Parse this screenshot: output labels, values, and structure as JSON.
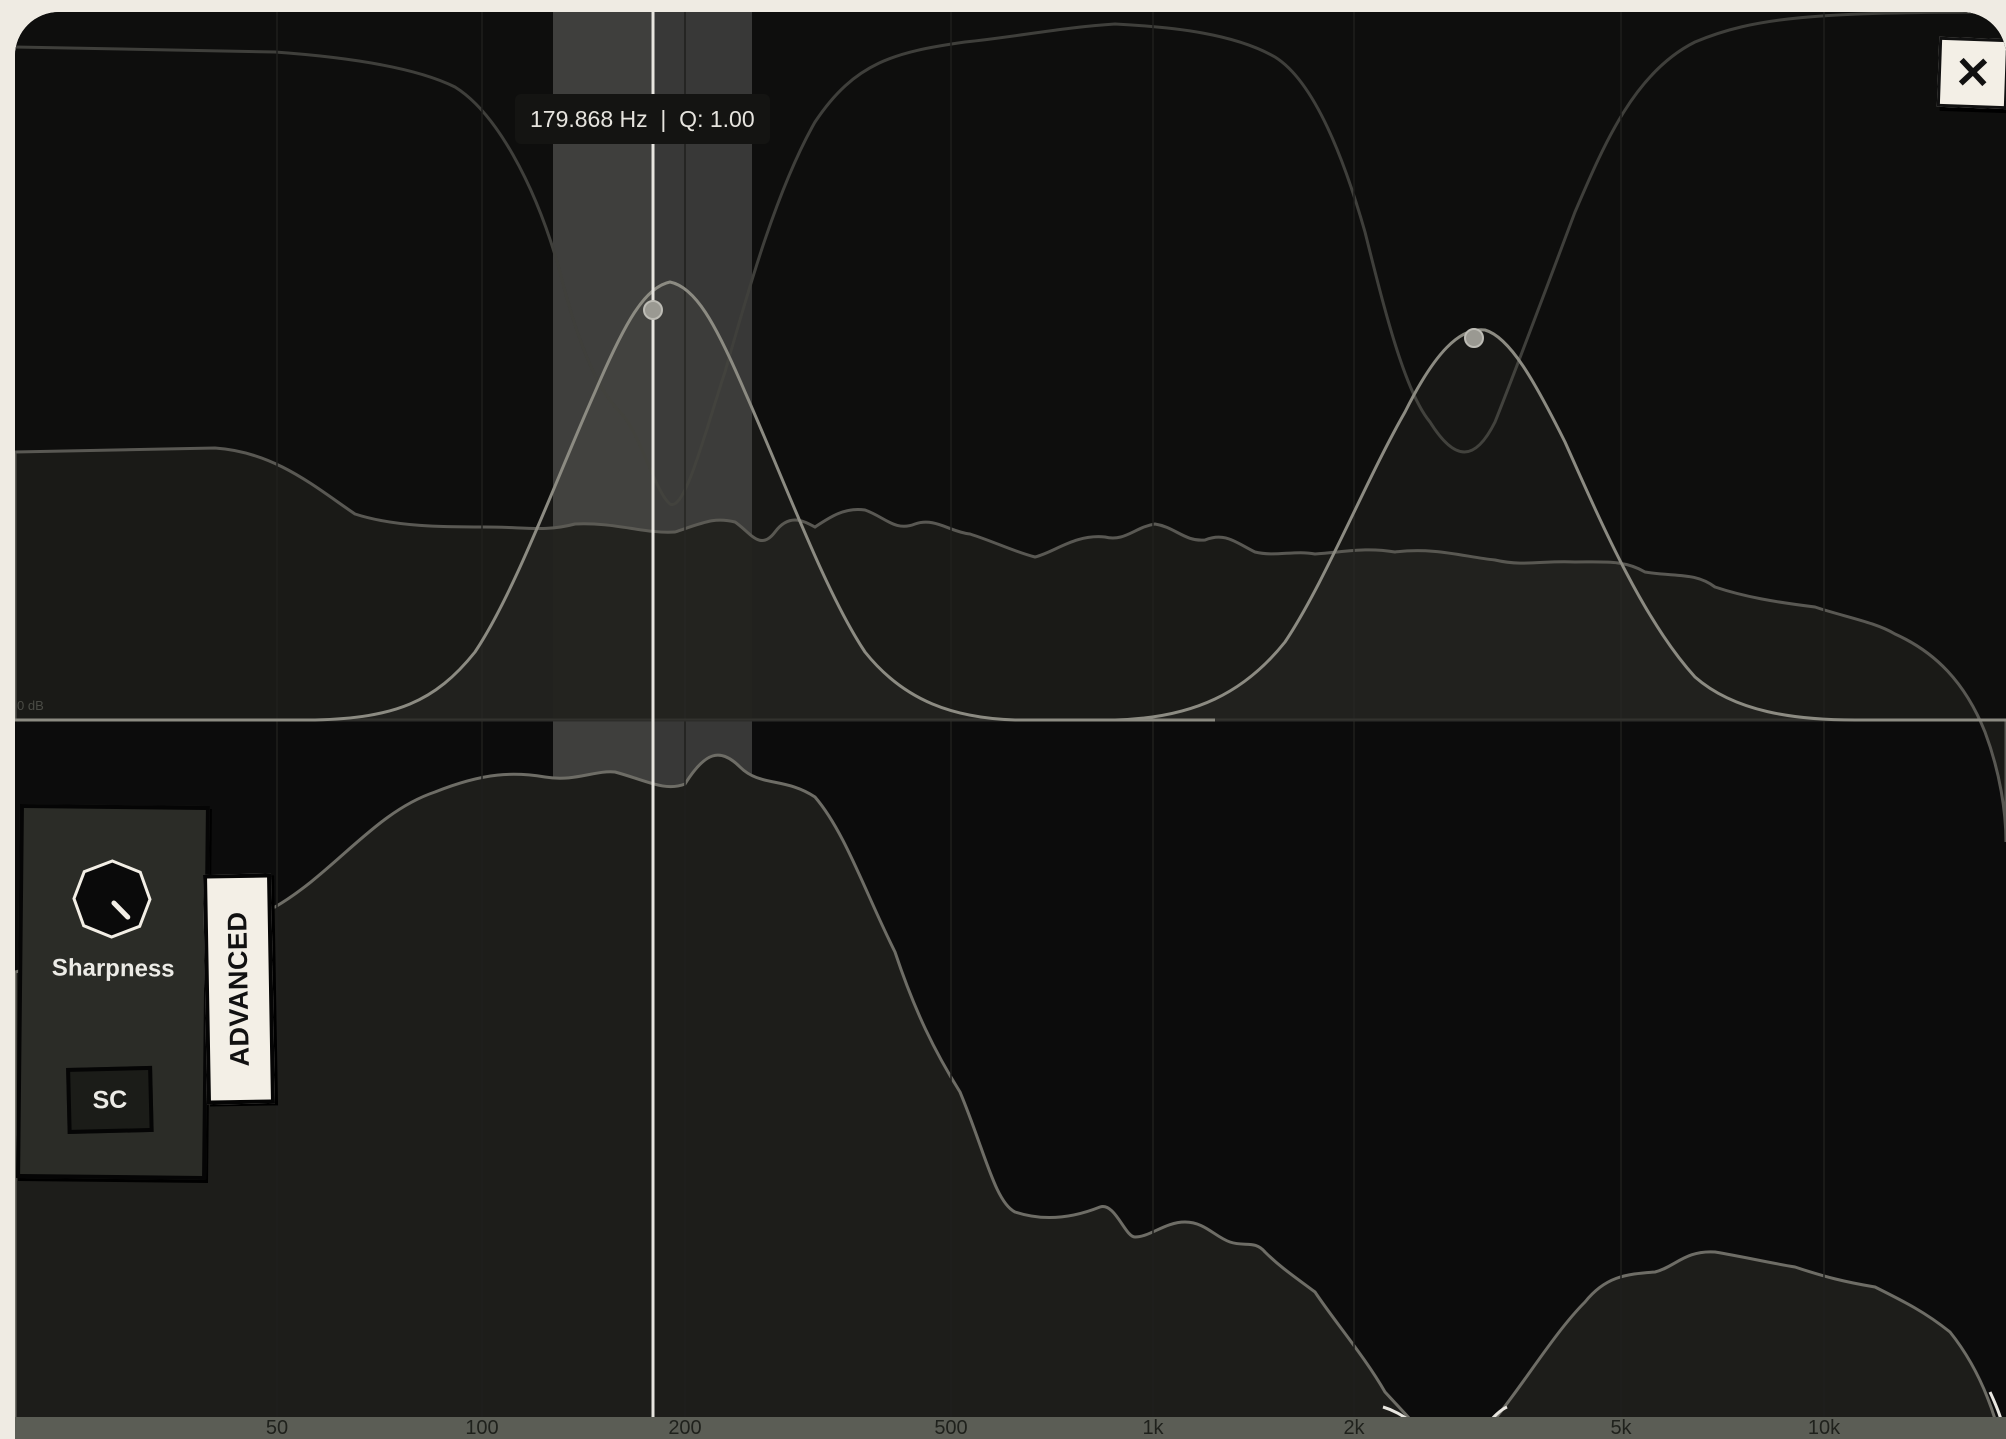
{
  "graph": {
    "frequency_ticks": [
      "50",
      "100",
      "200",
      "500",
      "1k",
      "2k",
      "5k",
      "10k"
    ],
    "db_label": "0 dB",
    "cursor_frequency_hz": 179.868,
    "highlight_band_hz": [
      128,
      256
    ]
  },
  "tooltip": {
    "text": "179.868 Hz  |  Q: 1.00"
  },
  "eq_nodes": [
    {
      "name": "band-1",
      "frequency_hz": 180,
      "q": 1.0
    },
    {
      "name": "band-2",
      "frequency_hz": 3000,
      "q": 1.0
    }
  ],
  "controls": {
    "close_icon": "close-icon",
    "knob_label": "Sharpness",
    "sc_label": "SC",
    "advanced_label": "ADVANCED"
  },
  "colors": {
    "background": "#0c0c0c",
    "cream": "#f3efe6",
    "curve": "#8c8b82",
    "highlight_band": "#3a3a38"
  }
}
